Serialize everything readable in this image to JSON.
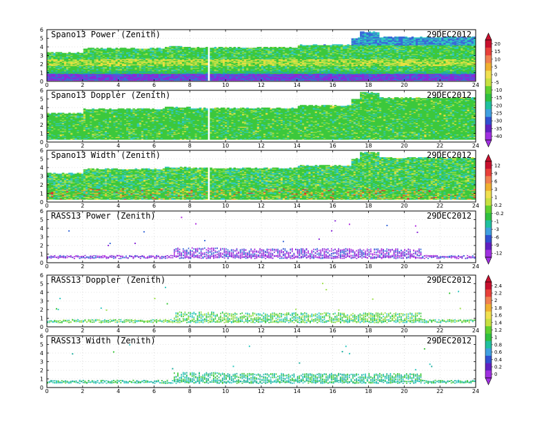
{
  "chart_data": [
    {
      "type": "heatmap",
      "title": "Spano13 Power (Zenith)",
      "date": "29DEC2012",
      "xlim": [
        0,
        24
      ],
      "ylim": [
        0,
        6
      ],
      "xticks": [
        "0",
        "2",
        "4",
        "6",
        "8",
        "10",
        "12",
        "14",
        "16",
        "18",
        "20",
        "22",
        "24"
      ],
      "yticks": [
        "0",
        "1",
        "2",
        "3",
        "4",
        "5",
        "6"
      ],
      "field": "power"
    },
    {
      "type": "heatmap",
      "title": "Spano13 Doppler (Zenith)",
      "date": "29DEC2012",
      "xlim": [
        0,
        24
      ],
      "ylim": [
        0,
        6
      ],
      "xticks": [
        "0",
        "2",
        "4",
        "6",
        "8",
        "10",
        "12",
        "14",
        "16",
        "18",
        "20",
        "22",
        "24"
      ],
      "yticks": [
        "0",
        "1",
        "2",
        "3",
        "4",
        "5",
        "6"
      ],
      "field": "doppler"
    },
    {
      "type": "heatmap",
      "title": "Spano13 Width (Zenith)",
      "date": "29DEC2012",
      "xlim": [
        0,
        24
      ],
      "ylim": [
        0,
        6
      ],
      "xticks": [
        "0",
        "2",
        "4",
        "6",
        "8",
        "10",
        "12",
        "14",
        "16",
        "18",
        "20",
        "22",
        "24"
      ],
      "yticks": [
        "0",
        "1",
        "2",
        "3",
        "4",
        "5",
        "6"
      ],
      "field": "width"
    },
    {
      "type": "scatter",
      "title": "RASS13 Power (Zenith)",
      "date": "29DEC2012",
      "xlim": [
        0,
        24
      ],
      "ylim": [
        0,
        6
      ],
      "xticks": [
        "0",
        "2",
        "4",
        "6",
        "8",
        "10",
        "12",
        "14",
        "16",
        "18",
        "20",
        "22",
        "24"
      ],
      "yticks": [
        "0",
        "1",
        "2",
        "3",
        "4",
        "5",
        "6"
      ],
      "field": "rpower"
    },
    {
      "type": "scatter",
      "title": "RASS13 Doppler (Zenith)",
      "date": "29DEC2012",
      "xlim": [
        0,
        24
      ],
      "ylim": [
        0,
        6
      ],
      "xticks": [
        "0",
        "2",
        "4",
        "6",
        "8",
        "10",
        "12",
        "14",
        "16",
        "18",
        "20",
        "22",
        "24"
      ],
      "yticks": [
        "0",
        "1",
        "2",
        "3",
        "4",
        "5",
        "6"
      ],
      "field": "rdoppler"
    },
    {
      "type": "scatter",
      "title": "RASS13 Width (Zenith)",
      "date": "29DEC2012",
      "xlim": [
        0,
        24
      ],
      "ylim": [
        0,
        6
      ],
      "xticks": [
        "0",
        "2",
        "4",
        "6",
        "8",
        "10",
        "12",
        "14",
        "16",
        "18",
        "20",
        "22",
        "24"
      ],
      "yticks": [
        "0",
        "1",
        "2",
        "3",
        "4",
        "5",
        "6"
      ],
      "field": "rwidth"
    }
  ],
  "colorbars": [
    {
      "labels": [
        "20",
        "15",
        "10",
        "5",
        "0",
        "-5",
        "-10",
        "-15",
        "-20",
        "-25",
        "-30",
        "-35",
        "-40"
      ],
      "colors": [
        "#c8102e",
        "#e8403a",
        "#f08050",
        "#f0b030",
        "#f0e050",
        "#c8e040",
        "#60d030",
        "#30c040",
        "#20c0a0",
        "#40a0e0",
        "#3050d0",
        "#6020c0",
        "#a030e0"
      ]
    },
    {
      "labels": [
        "12",
        "9",
        "6",
        "3",
        "1",
        "0.2",
        "-0.2",
        "-1",
        "-3",
        "-6",
        "-9",
        "-12"
      ],
      "colors": [
        "#c8102e",
        "#e8403a",
        "#f08050",
        "#f0b030",
        "#f0e050",
        "#c8e040",
        "#60d030",
        "#30c040",
        "#20c0a0",
        "#40a0e0",
        "#3050d0",
        "#6020c0",
        "#a030e0"
      ]
    },
    {
      "labels": [
        "2.4",
        "2.2",
        "2",
        "1.8",
        "1.6",
        "1.4",
        "1.2",
        "1",
        "0.8",
        "0.6",
        "0.4",
        "0.2",
        "0"
      ],
      "colors": [
        "#c8102e",
        "#e8403a",
        "#f08050",
        "#f0b030",
        "#f0e050",
        "#c8e040",
        "#60d030",
        "#30c040",
        "#20c0a0",
        "#40a0e0",
        "#3050d0",
        "#6020c0",
        "#a030e0"
      ]
    }
  ],
  "colors": {
    "green": "#3cc83c",
    "ltgreen": "#9de04a",
    "yellow": "#e8e040",
    "cyan": "#30c8c0",
    "teal": "#20b0a0",
    "blue": "#3a6ad8",
    "purple": "#8a2ad8",
    "magenta": "#b030e0",
    "orange": "#f0a030",
    "red": "#e03030"
  }
}
